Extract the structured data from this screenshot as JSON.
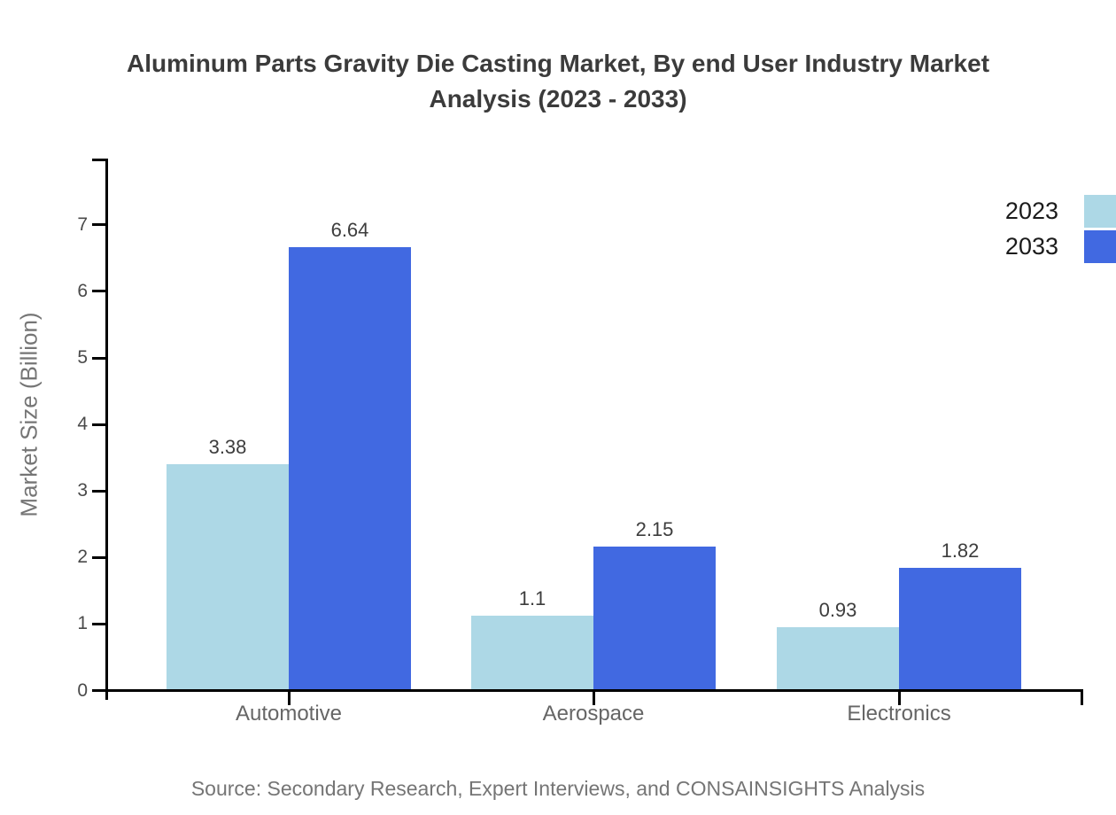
{
  "chart_data": {
    "type": "bar",
    "title": "Aluminum Parts Gravity Die Casting Market, By end User Industry Market Analysis (2023 - 2033)",
    "categories": [
      "Automotive",
      "Aerospace",
      "Electronics"
    ],
    "series": [
      {
        "name": "2023",
        "color": "#ADD8E6",
        "values": [
          3.38,
          1.1,
          0.93
        ]
      },
      {
        "name": "2033",
        "color": "#4169E1",
        "values": [
          6.64,
          2.15,
          1.82
        ]
      }
    ],
    "xlabel": "",
    "ylabel": "Market Size (Billion)",
    "yticks": [
      0,
      1,
      2,
      3,
      4,
      5,
      6,
      7
    ],
    "ylim": [
      0,
      8
    ],
    "grid": false,
    "legend_position": "top-right",
    "bar_value_labels": true,
    "axis_color": "#000000",
    "source": "Source: Secondary Research, Expert Interviews, and CONSAINSIGHTS Analysis"
  }
}
